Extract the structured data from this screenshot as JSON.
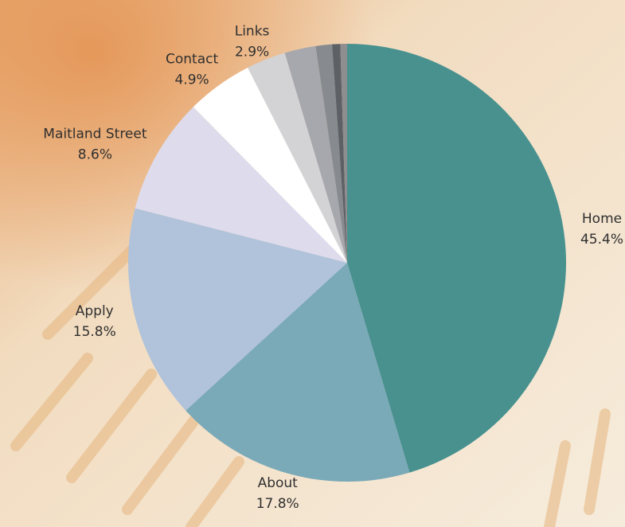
{
  "chart_data": {
    "type": "pie",
    "categories": [
      "Home",
      "About",
      "Apply",
      "Maitland Street",
      "Contact",
      "Links",
      null,
      null,
      null,
      null
    ],
    "values": [
      45.4,
      17.8,
      15.8,
      8.6,
      4.9,
      2.9,
      2.3,
      1.2,
      0.6,
      0.5
    ],
    "value_labels": [
      "45.4%",
      "17.8%",
      "15.8%",
      "8.6%",
      "4.9%",
      "2.9%",
      null,
      null,
      null,
      null
    ],
    "colors": [
      "#48918f",
      "#7aa9b8",
      "#b0c3da",
      "#dedbec",
      "#ffffff",
      "#d3d3d6",
      "#a7a8ad",
      "#878b8f",
      "#5d6166",
      "#8e8e90"
    ]
  }
}
